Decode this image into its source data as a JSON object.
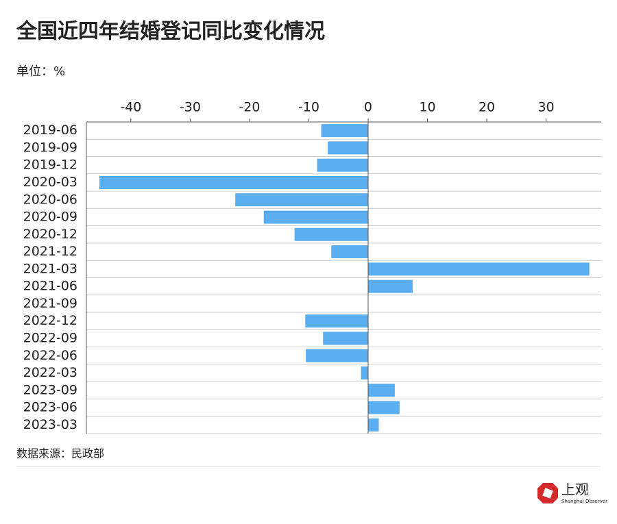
{
  "chart_data": {
    "type": "barh",
    "title": "全国近四年结婚登记同比变化情况",
    "unit_label": "单位：%",
    "categories": [
      "2019-06",
      "2019-09",
      "2019-12",
      "2020-03",
      "2020-06",
      "2020-09",
      "2020-12",
      "2021-12",
      "2021-03",
      "2021-06",
      "2021-09",
      "2022-12",
      "2022-09",
      "2022-06",
      "2022-03",
      "2023-09",
      "2023-06",
      "2023-03"
    ],
    "values": [
      -7.9,
      -6.8,
      -8.6,
      -45.3,
      -22.4,
      -17.6,
      -12.4,
      -6.2,
      37.3,
      7.5,
      0,
      -10.6,
      -7.6,
      -10.5,
      -1.2,
      4.5,
      5.3,
      1.8
    ],
    "color": "#5aaef0",
    "xlim": [
      -47.5,
      39.3
    ],
    "xticks": [
      -40,
      -30,
      -20,
      -10,
      0,
      10,
      20,
      30
    ],
    "grid": true,
    "source": "数据来源：民政部",
    "logo_text": "上观",
    "logo_subtitle": "Shanghai Observer"
  }
}
